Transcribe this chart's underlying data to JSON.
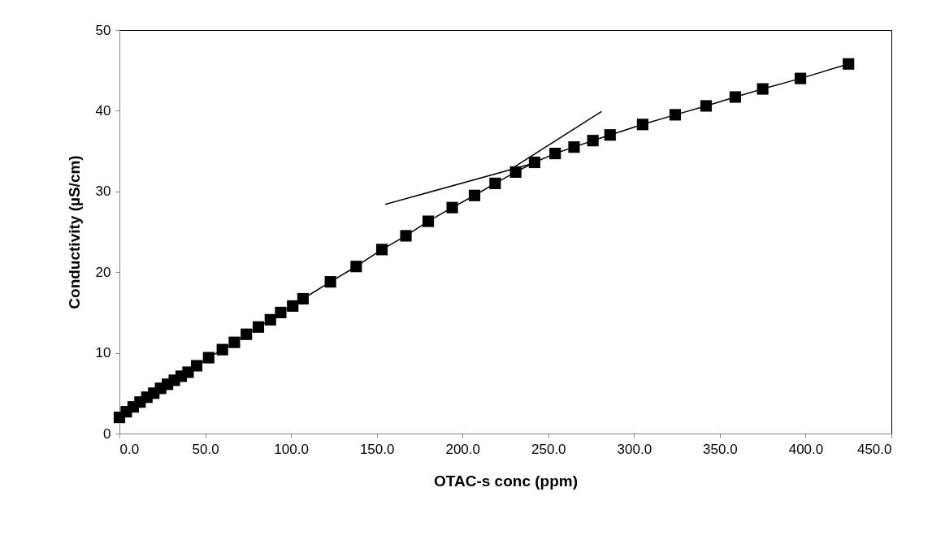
{
  "chart_data": {
    "type": "line",
    "xlabel": "OTAC-s conc (ppm)",
    "ylabel": "Conductivity (µS/cm)",
    "xlim": [
      0,
      450
    ],
    "ylim": [
      0,
      50
    ],
    "xticks": [
      {
        "value": 0,
        "label": "0.0"
      },
      {
        "value": 50,
        "label": "50.0"
      },
      {
        "value": 100,
        "label": "100.0"
      },
      {
        "value": 150,
        "label": "150.0"
      },
      {
        "value": 200,
        "label": "200.0"
      },
      {
        "value": 250,
        "label": "250.0"
      },
      {
        "value": 300,
        "label": "300.0"
      },
      {
        "value": 350,
        "label": "350.0"
      },
      {
        "value": 400,
        "label": "400.0"
      },
      {
        "value": 450,
        "label": "450.0"
      }
    ],
    "yticks": [
      0,
      10,
      20,
      30,
      40,
      50
    ],
    "grid": false,
    "series": [
      {
        "color": "#000000",
        "marker": "square",
        "x": [
          0,
          4,
          8,
          12,
          16,
          20,
          24,
          28,
          32,
          36,
          40,
          45,
          52,
          60,
          67,
          74,
          81,
          88,
          94,
          101,
          107,
          123,
          138,
          153,
          167,
          180,
          194,
          207,
          219,
          231,
          242,
          254,
          265,
          276,
          286,
          305,
          324,
          342,
          359,
          375,
          397,
          425
        ],
        "values": [
          2.0,
          2.7,
          3.3,
          3.9,
          4.5,
          5.0,
          5.6,
          6.1,
          6.6,
          7.1,
          7.6,
          8.4,
          9.4,
          10.4,
          11.3,
          12.3,
          13.2,
          14.1,
          15.0,
          15.8,
          16.7,
          18.8,
          20.7,
          22.8,
          24.5,
          26.3,
          28.0,
          29.5,
          31.0,
          32.4,
          33.6,
          34.7,
          35.5,
          36.3,
          37.0,
          38.3,
          39.5,
          40.6,
          41.7,
          42.7,
          44.0,
          45.8
        ]
      },
      {
        "color": "#000000",
        "marker": "none",
        "x": [
          155,
          240
        ],
        "values": [
          28.4,
          33.4
        ]
      },
      {
        "color": "#000000",
        "marker": "none",
        "x": [
          230,
          281
        ],
        "values": [
          33.0,
          39.9
        ]
      }
    ]
  }
}
